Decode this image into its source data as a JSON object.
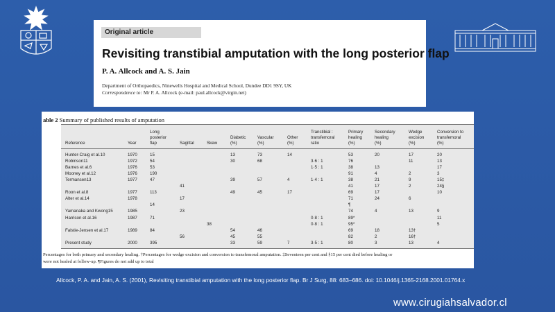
{
  "article": {
    "label": "Original article",
    "title": "Revisiting transtibial amputation with the long posterior flap",
    "authors": "P. A. Allcock and A. S. Jain",
    "department": "Department of Orthopaedics, Ninewells Hospital and Medical School, Dundee DD1 9SY, UK",
    "correspondence_label": "Correspondence to:",
    "correspondence_text": " Mr P. A. Allcock (e-mail: paul.allcock@virgin.net)"
  },
  "table": {
    "caption_bold": "able 2",
    "caption_rest": " Summary of published results of amputation",
    "headers": {
      "reference": "Reference",
      "year": "Year",
      "long_flap": "Long\nposterior\nflap",
      "sagittal": "Sagittal",
      "skew": "Skew",
      "diabetic": "Diabetic\n(%)",
      "vascular": "Vascular\n(%)",
      "other": "Other\n(%)",
      "ratio": "Transtibial :\ntransfemoral\nratio",
      "primary": "Primary\nhealing\n(%)",
      "secondary": "Secondary\nhealing\n(%)",
      "wedge": "Wedge\nexcision\n(%)",
      "conversion": "Conversion to\ntransfemoral\n(%)"
    },
    "rows": [
      {
        "ref": "Hunter-Craig et al.10",
        "year": "1970",
        "long": "15",
        "sag": "",
        "skew": "",
        "dia": "13",
        "vas": "73",
        "oth": "14",
        "ratio": "",
        "pri": "53",
        "sec": "20",
        "wed": "17",
        "con": "20"
      },
      {
        "ref": "Robinson11",
        "year": "1972",
        "long": "54",
        "sag": "",
        "skew": "",
        "dia": "30",
        "vas": "68",
        "oth": "",
        "ratio": "3·6 : 1",
        "pri": "76",
        "sec": "",
        "wed": "11",
        "con": "13"
      },
      {
        "ref": "Barnes et al.6",
        "year": "1976",
        "long": "53",
        "sag": "",
        "skew": "",
        "dia": "",
        "vas": "",
        "oth": "",
        "ratio": "1·5 : 1",
        "pri": "38",
        "sec": "13",
        "wed": "",
        "con": "17"
      },
      {
        "ref": "Mooney et al.12",
        "year": "1976",
        "long": "190",
        "sag": "",
        "skew": "",
        "dia": "",
        "vas": "",
        "oth": "",
        "ratio": "",
        "pri": "91",
        "sec": "4",
        "wed": "2",
        "con": "3"
      },
      {
        "ref": "Termansen13",
        "year": "1977",
        "long": "47",
        "sag": "",
        "skew": "",
        "dia": "39",
        "vas": "57",
        "oth": "4",
        "ratio": "1·4 : 1",
        "pri": "38",
        "sec": "21",
        "wed": "9",
        "con": "15‡"
      },
      {
        "ref": "",
        "year": "",
        "long": "",
        "sag": "41",
        "skew": "",
        "dia": "",
        "vas": "",
        "oth": "",
        "ratio": "",
        "pri": "41",
        "sec": "17",
        "wed": "2",
        "con": "24§"
      },
      {
        "ref": "Roon et al.8",
        "year": "1977",
        "long": "113",
        "sag": "",
        "skew": "",
        "dia": "49",
        "vas": "45",
        "oth": "17",
        "ratio": "",
        "pri": "69",
        "sec": "17",
        "wed": "",
        "con": "10"
      },
      {
        "ref": "Alter et al.14",
        "year": "1978",
        "long": "",
        "sag": "17",
        "skew": "",
        "dia": "",
        "vas": "",
        "oth": "",
        "ratio": "",
        "pri": "71",
        "sec": "24",
        "wed": "6",
        "con": ""
      },
      {
        "ref": "",
        "year": "",
        "long": "14",
        "sag": "",
        "skew": "",
        "dia": "",
        "vas": "",
        "oth": "",
        "ratio": "",
        "pri": "¶",
        "sec": "",
        "wed": "",
        "con": ""
      },
      {
        "ref": "Yamanaka and Kwong15",
        "year": "1985",
        "long": "",
        "sag": "23",
        "skew": "",
        "dia": "",
        "vas": "",
        "oth": "",
        "ratio": "",
        "pri": "74",
        "sec": "4",
        "wed": "13",
        "con": "9"
      },
      {
        "ref": "Harrison et al.16",
        "year": "1987",
        "long": "71",
        "sag": "",
        "skew": "",
        "dia": "",
        "vas": "",
        "oth": "",
        "ratio": "0·8 : 1",
        "pri": "89*",
        "sec": "",
        "wed": "",
        "con": "11"
      },
      {
        "ref": "",
        "year": "",
        "long": "",
        "sag": "",
        "skew": "38",
        "dia": "",
        "vas": "",
        "oth": "",
        "ratio": "0·8 : 1",
        "pri": "95*",
        "sec": "",
        "wed": "",
        "con": "5"
      },
      {
        "ref": "Falstie-Jensen et al.17",
        "year": "1989",
        "long": "84",
        "sag": "",
        "skew": "",
        "dia": "54",
        "vas": "46",
        "oth": "",
        "ratio": "",
        "pri": "69",
        "sec": "18",
        "wed": "13†",
        "con": ""
      },
      {
        "ref": "",
        "year": "",
        "long": "",
        "sag": "56",
        "skew": "",
        "dia": "45",
        "vas": "55",
        "oth": "",
        "ratio": "",
        "pri": "82",
        "sec": "2",
        "wed": "16†",
        "con": ""
      },
      {
        "ref": "Present study",
        "year": "2000",
        "long": "395",
        "sag": "",
        "skew": "",
        "dia": "33",
        "vas": "59",
        "oth": "7",
        "ratio": "3·5 : 1",
        "pri": "80",
        "sec": "3",
        "wed": "13",
        "con": "4"
      }
    ],
    "footnote1": "Percentages for both primary and secondary healing. †Percentages for wedge excision and conversion to transfemoral amputation. ‡Seventeen per cent and §15 per cent died before healing or",
    "footnote2": "were not healed at follow-up. ¶Figures do not add up to total"
  },
  "citation": "Allcock, P. A. and Jain, A. S. (2001), Revisiting transtibial amputation with the long posterior flap. Br J Surg, 88: 683–686. doi: 10.1046/j.1365-2168.2001.01764.x",
  "watermark": "www.cirugiahsalvador.cl",
  "colors": {
    "background": "#2b5aa6",
    "card": "#ffffff",
    "table_fill": "#e8e8e8"
  }
}
